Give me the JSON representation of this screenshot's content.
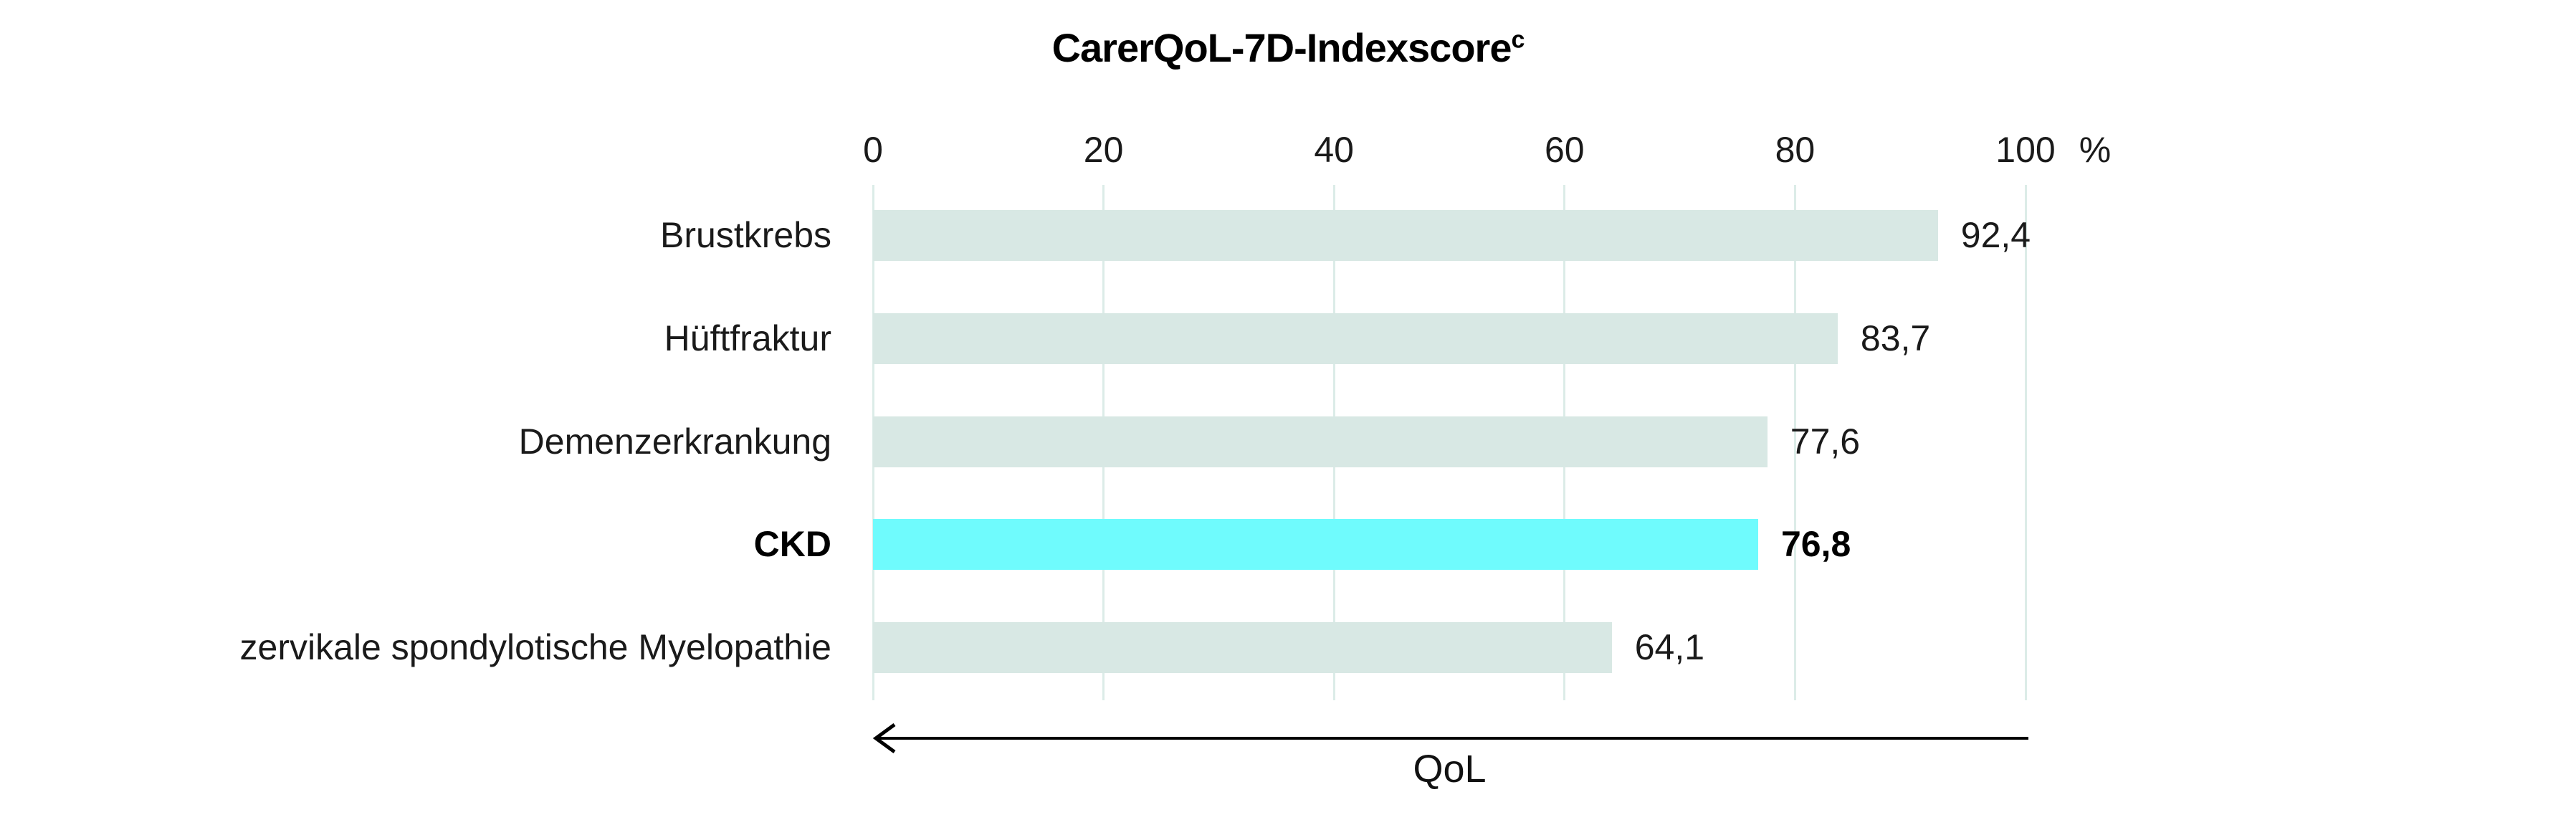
{
  "chart_data": {
    "type": "bar",
    "orientation": "horizontal",
    "title": "CarerQoL-7D-Indexscore",
    "title_superscript": "c",
    "categories": [
      "Brustkrebs",
      "Hüftfraktur",
      "Demenzerkrankung",
      "CKD",
      "zervikale spondylotische Myelopathie"
    ],
    "values": [
      92.4,
      83.7,
      77.6,
      76.8,
      64.1
    ],
    "value_labels": [
      "92,4",
      "83,7",
      "77,6",
      "76,8",
      "64,1"
    ],
    "highlight_index": 3,
    "highlight_category": "CKD",
    "x_axis": {
      "position": "top",
      "ticks": [
        0,
        20,
        40,
        60,
        80,
        100
      ],
      "tick_labels": [
        "0",
        "20",
        "40",
        "60",
        "80",
        "100"
      ],
      "unit_label": "%",
      "range": [
        0,
        100
      ]
    },
    "grid": "vertical",
    "legend": "none",
    "arrow_label": "QoL",
    "arrow_direction": "left",
    "colors": {
      "bar": "#d8e8e4",
      "highlight_bar": "#6ffbfd",
      "gridline": "#dcece8",
      "text": "#1a1a1a"
    }
  }
}
